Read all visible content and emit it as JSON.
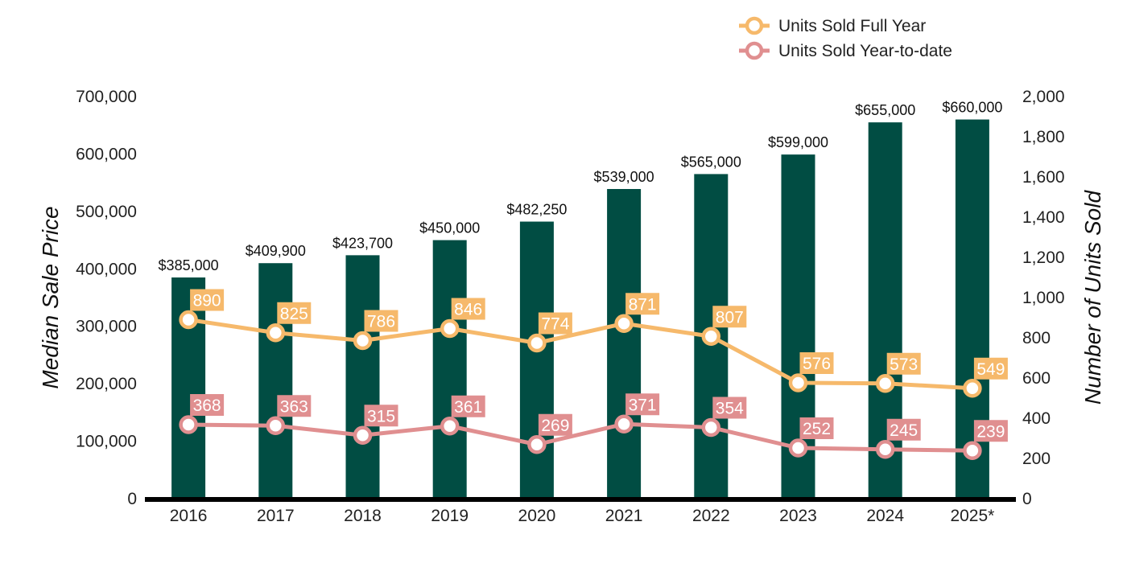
{
  "chart_data": {
    "type": "bar",
    "categories": [
      "2016",
      "2017",
      "2018",
      "2019",
      "2020",
      "2021",
      "2022",
      "2023",
      "2024",
      "2025*"
    ],
    "bars": {
      "values": [
        385000,
        409900,
        423700,
        450000,
        482250,
        539000,
        565000,
        599000,
        655000,
        660000
      ],
      "labels": [
        "$385,000",
        "$409,900",
        "$423,700",
        "$450,000",
        "$482,250",
        "$539,000",
        "$565,000",
        "$599,000",
        "$655,000",
        "$660,000"
      ],
      "color": "#014d43"
    },
    "series": [
      {
        "name": "Units Sold Full Year",
        "type": "line",
        "axis": "right",
        "values": [
          890,
          825,
          786,
          846,
          774,
          871,
          807,
          576,
          573,
          549
        ],
        "color": "#f6b96b"
      },
      {
        "name": "Units Sold Year-to-date",
        "type": "line",
        "axis": "right",
        "values": [
          368,
          363,
          315,
          361,
          269,
          371,
          354,
          252,
          245,
          239
        ],
        "color": "#e08f90"
      }
    ],
    "ylabel": "Median Sale Price",
    "y2label": "Number of Units Sold",
    "ylim": [
      0,
      700000
    ],
    "y2lim": [
      0,
      2000
    ],
    "yticks": [
      "0",
      "100,000",
      "200,000",
      "300,000",
      "400,000",
      "500,000",
      "600,000",
      "700,000"
    ],
    "y2ticks": [
      "0",
      "200",
      "400",
      "600",
      "800",
      "1,000",
      "1,200",
      "1,400",
      "1,600",
      "1,800",
      "2,000"
    ],
    "legend_position": "top-right",
    "grid": false
  }
}
